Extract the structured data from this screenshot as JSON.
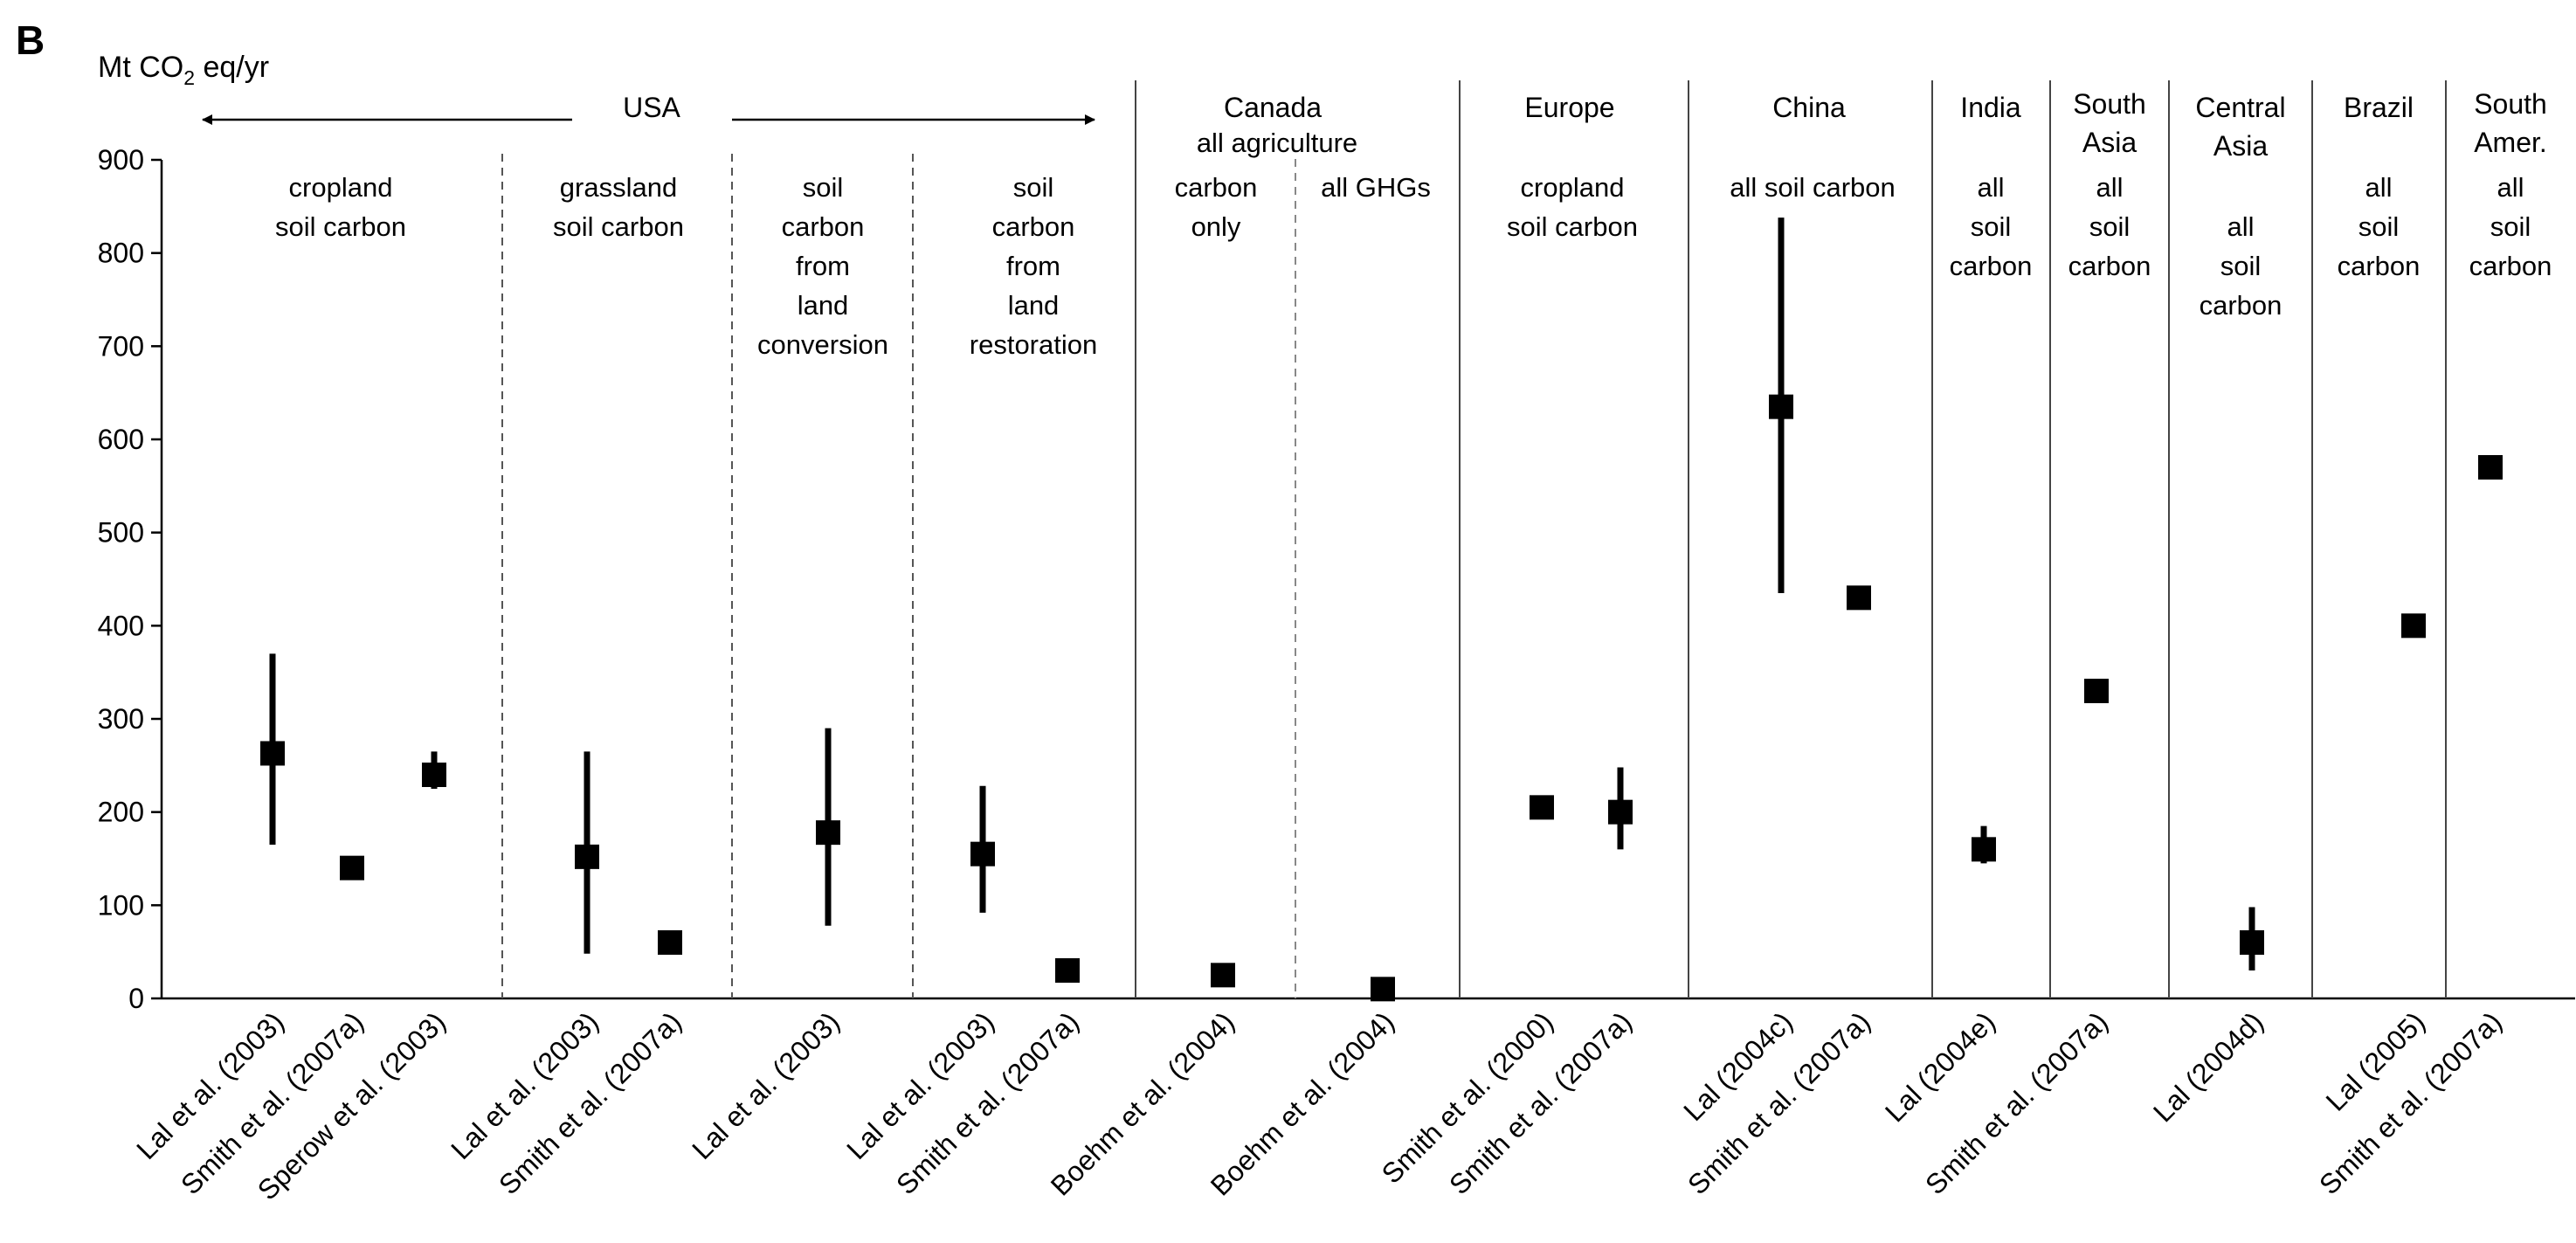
{
  "chart_data": {
    "type": "scatter",
    "panel_label": "B",
    "ylabel": {
      "prefix": "Mt CO",
      "subscript": "2",
      "suffix": " eq/yr"
    },
    "ylim": [
      0,
      900
    ],
    "yticks": [
      0,
      100,
      200,
      300,
      400,
      500,
      600,
      700,
      800,
      900
    ],
    "regions": [
      {
        "name": "USA",
        "arrows": true
      },
      {
        "name": "Canada"
      },
      {
        "name": "Europe"
      },
      {
        "name": "China"
      },
      {
        "name": "India"
      },
      {
        "name": "South Asia"
      },
      {
        "name": "Central Asia"
      },
      {
        "name": "Brazil"
      },
      {
        "name": "South Amer."
      }
    ],
    "captions": {
      "canada_top": "all agriculture",
      "canada_carbon_only": [
        "carbon",
        "only"
      ],
      "canada_all_ghgs": "all GHGs",
      "usa_cropland": [
        "cropland",
        "soil carbon"
      ],
      "usa_grassland": [
        "grassland",
        "soil carbon"
      ],
      "usa_conversion": [
        "soil",
        "carbon",
        "from",
        "land",
        "conversion"
      ],
      "usa_restoration": [
        "soil",
        "carbon",
        "from",
        "land",
        "restoration"
      ],
      "europe": [
        "cropland",
        "soil carbon"
      ],
      "china": "all soil carbon",
      "india": [
        "all",
        "soil",
        "carbon"
      ],
      "south_asia": [
        "all",
        "soil",
        "carbon"
      ],
      "central_asia": [
        "all",
        "soil",
        "carbon"
      ],
      "brazil": [
        "all",
        "soil",
        "carbon"
      ],
      "south_amer": [
        "all",
        "soil",
        "carbon"
      ]
    },
    "series": [
      {
        "label": "Lal et al. (2003)",
        "value": 263,
        "low": 165,
        "high": 370
      },
      {
        "label": "Smith et al. (2007a)",
        "value": 140
      },
      {
        "label": "Sperow et al. (2003)",
        "value": 240,
        "low": 225,
        "high": 265
      },
      {
        "label": "Lal et al. (2003)",
        "value": 152,
        "low": 48,
        "high": 265
      },
      {
        "label": "Smith et al. (2007a)",
        "value": 60
      },
      {
        "label": "Lal et al. (2003)",
        "value": 178,
        "low": 78,
        "high": 290
      },
      {
        "label": "Lal et al. (2003)",
        "value": 155,
        "low": 92,
        "high": 228
      },
      {
        "label": "Smith et al. (2007a)",
        "value": 30
      },
      {
        "label": "Boehm et al. (2004)",
        "value": 25,
        "low": 20,
        "high": 33
      },
      {
        "label": "Boehm et al. (2004)",
        "value": 10,
        "low": 3,
        "high": 18
      },
      {
        "label": "Smith et al. (2000)",
        "value": 205
      },
      {
        "label": "Smith et al. (2007a)",
        "value": 200,
        "low": 160,
        "high": 248
      },
      {
        "label": "Lal (2004c)",
        "value": 635,
        "low": 435,
        "high": 838
      },
      {
        "label": "Smith et al. (2007a)",
        "value": 430
      },
      {
        "label": "Lal (2004e)",
        "value": 160,
        "low": 145,
        "high": 185
      },
      {
        "label": "Smith et al. (2007a)",
        "value": 330
      },
      {
        "label": "Lal (2004d)",
        "value": 60,
        "low": 30,
        "high": 98
      },
      {
        "label": "Lal (2005)",
        "value": 400
      },
      {
        "label": "Smith et al. (2007a)",
        "value": 570
      }
    ]
  }
}
